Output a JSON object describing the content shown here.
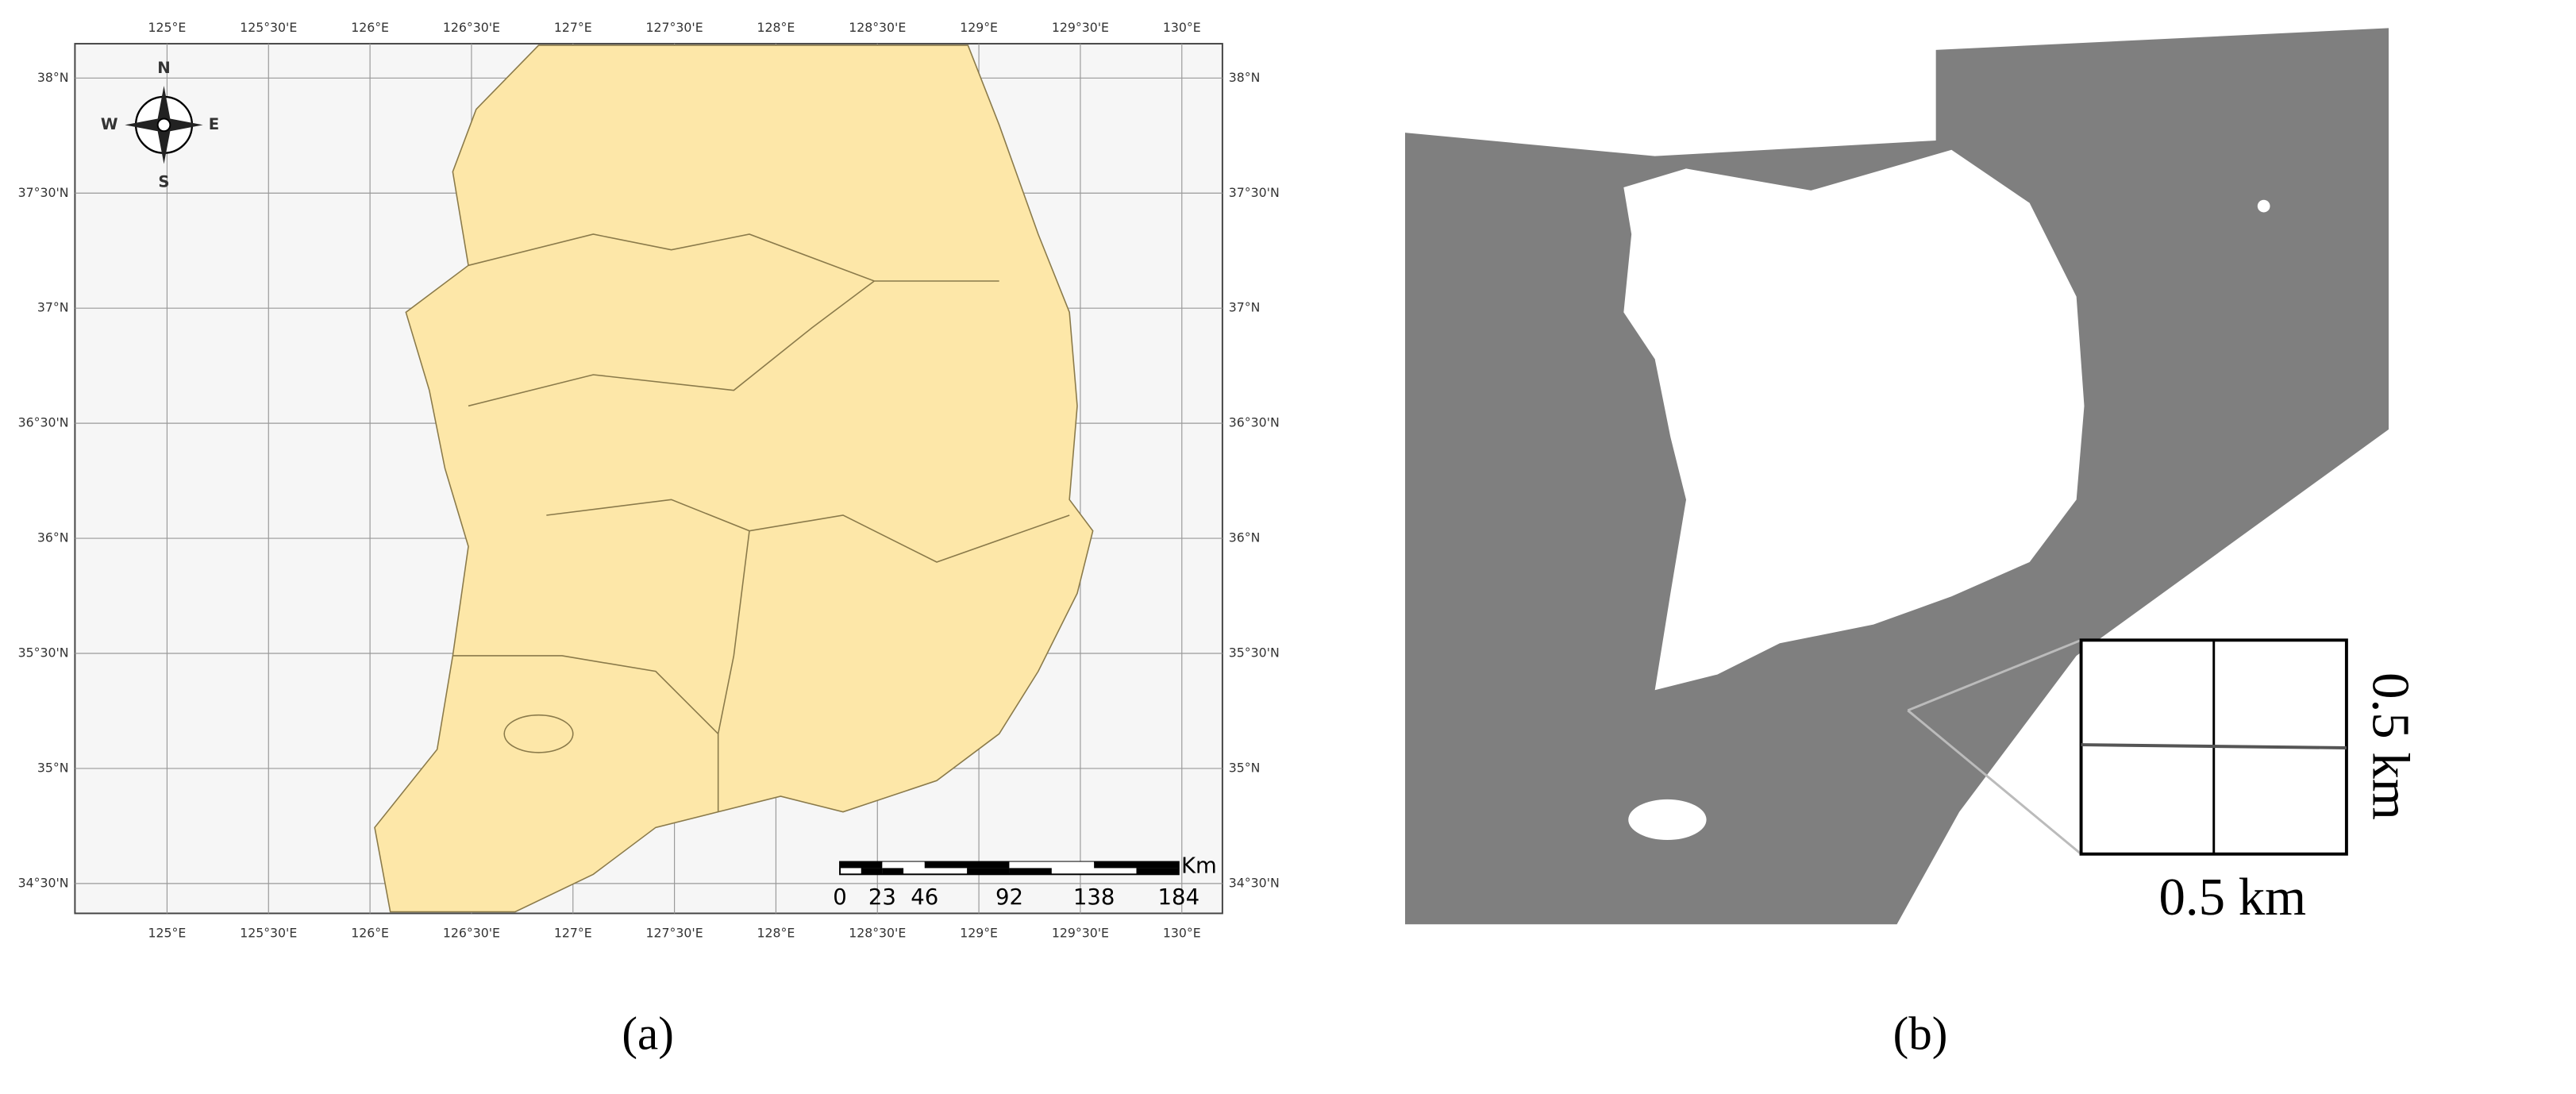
{
  "panel_a": {
    "lon_labels": [
      "125°E",
      "125°30'E",
      "126°E",
      "126°30'E",
      "127°E",
      "127°30'E",
      "128°E",
      "128°30'E",
      "129°E",
      "129°30'E",
      "130°E"
    ],
    "lat_labels": [
      "38°N",
      "37°30'N",
      "37°N",
      "36°30'N",
      "36°N",
      "35°30'N",
      "35°N",
      "34°30'N"
    ],
    "compass": {
      "n": "N",
      "w": "W",
      "e": "E",
      "s": "S"
    },
    "scale_bar": {
      "ticks": [
        0,
        23,
        46,
        92,
        138,
        184
      ],
      "unit": "Km"
    },
    "caption": "(a)"
  },
  "panel_b": {
    "width_label": "0.5 km",
    "height_label": "0.5 km",
    "caption": "(b)"
  }
}
